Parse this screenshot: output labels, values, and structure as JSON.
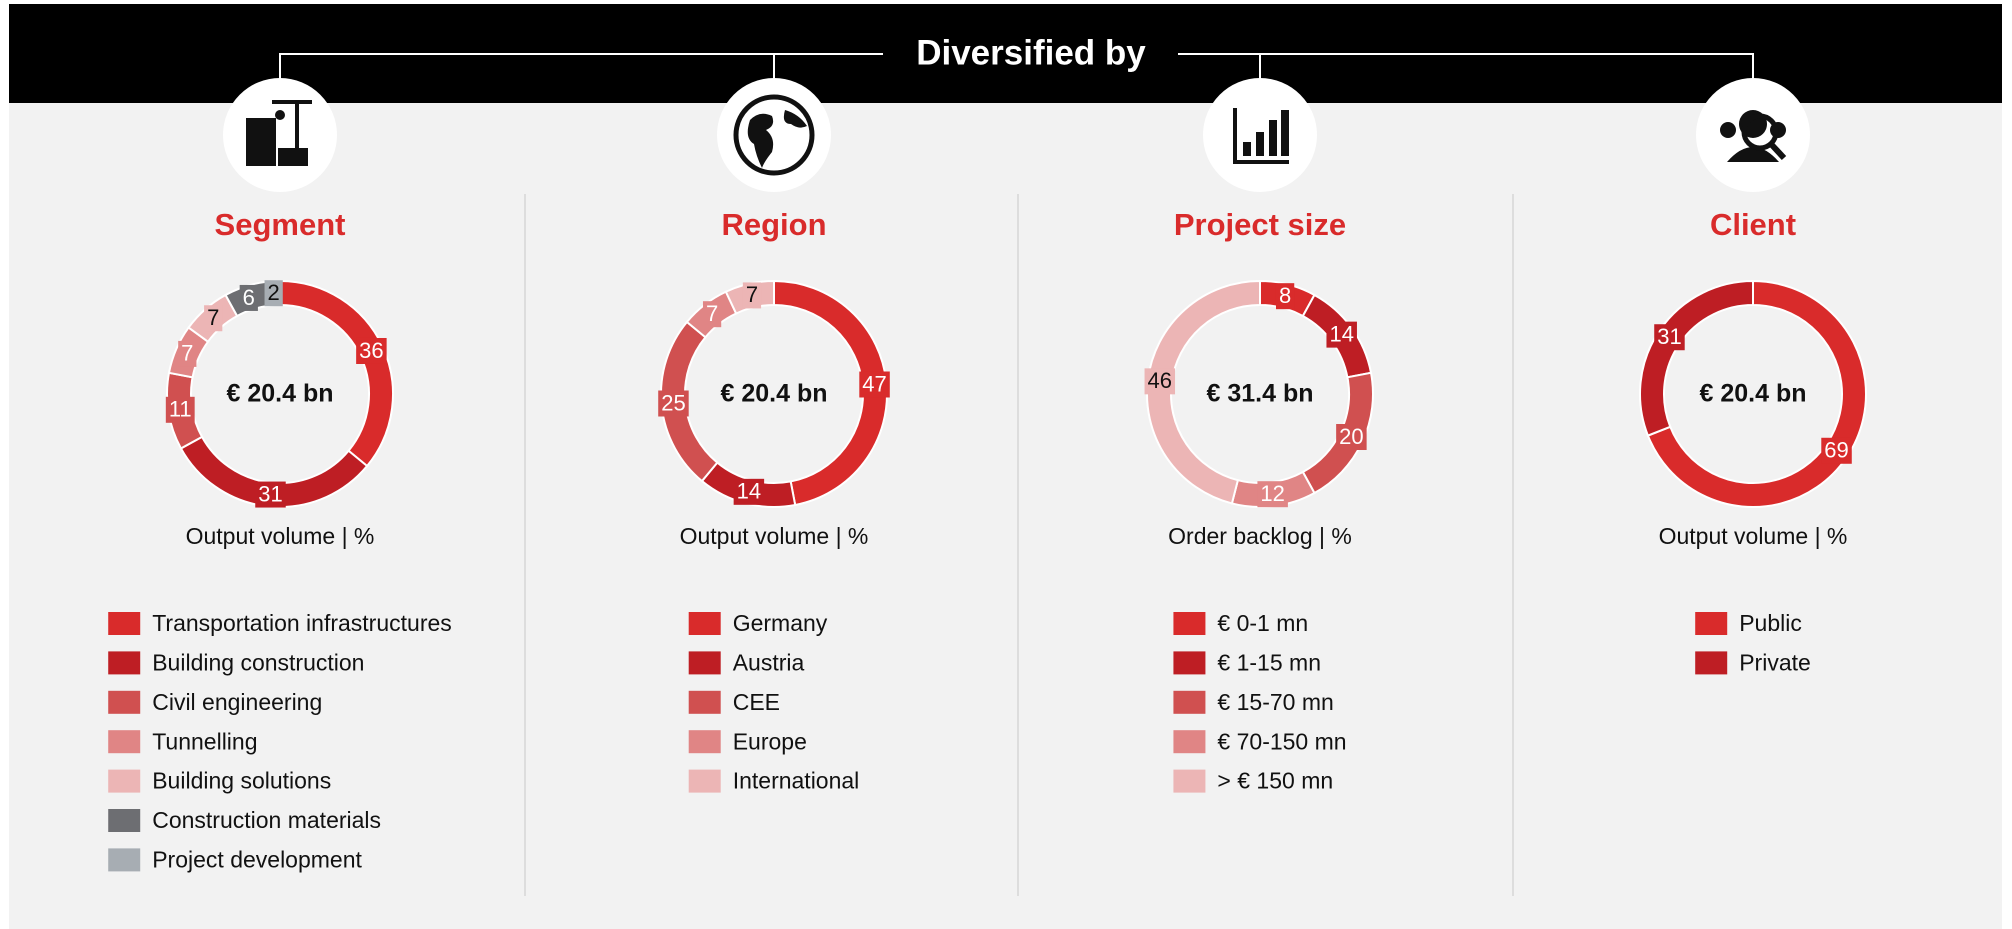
{
  "header": {
    "title": "Diversified by"
  },
  "chart_data": [
    {
      "type": "pie",
      "donut": true,
      "title": "Segment",
      "center_label": "€ 20.4 bn",
      "caption": "Output volume | %",
      "categories": [
        "Transportation infrastructures",
        "Building construction",
        "Civil engineering",
        "Tunnelling",
        "Building solutions",
        "Construction materials",
        "Project development"
      ],
      "values": [
        36,
        31,
        11,
        7,
        7,
        6,
        2
      ],
      "colors": [
        "#d92b2b",
        "#be1e24",
        "#d05050",
        "#e08585",
        "#ecb5b5",
        "#6d6e72",
        "#a7adb3"
      ]
    },
    {
      "type": "pie",
      "donut": true,
      "title": "Region",
      "center_label": "€ 20.4 bn",
      "caption": "Output volume | %",
      "categories": [
        "Germany",
        "Austria",
        "CEE",
        "Europe",
        "International"
      ],
      "values": [
        47,
        14,
        25,
        7,
        7
      ],
      "colors": [
        "#d92b2b",
        "#be1e24",
        "#d05050",
        "#e08585",
        "#ecb5b5"
      ]
    },
    {
      "type": "pie",
      "donut": true,
      "title": "Project size",
      "center_label": "€ 31.4 bn",
      "caption": "Order backlog | %",
      "categories": [
        "€ 0-1 mn",
        "€ 1-15 mn",
        "€ 15-70 mn",
        "€ 70-150 mn",
        "> € 150 mn"
      ],
      "values": [
        8,
        14,
        20,
        12,
        46
      ],
      "colors": [
        "#d92b2b",
        "#be1e24",
        "#d05050",
        "#e08585",
        "#ecb5b5"
      ]
    },
    {
      "type": "pie",
      "donut": true,
      "title": "Client",
      "center_label": "€ 20.4 bn",
      "caption": "Output volume | %",
      "categories": [
        "Public",
        "Private"
      ],
      "values": [
        69,
        31
      ],
      "colors": [
        "#d92b2b",
        "#be1e24"
      ]
    }
  ]
}
